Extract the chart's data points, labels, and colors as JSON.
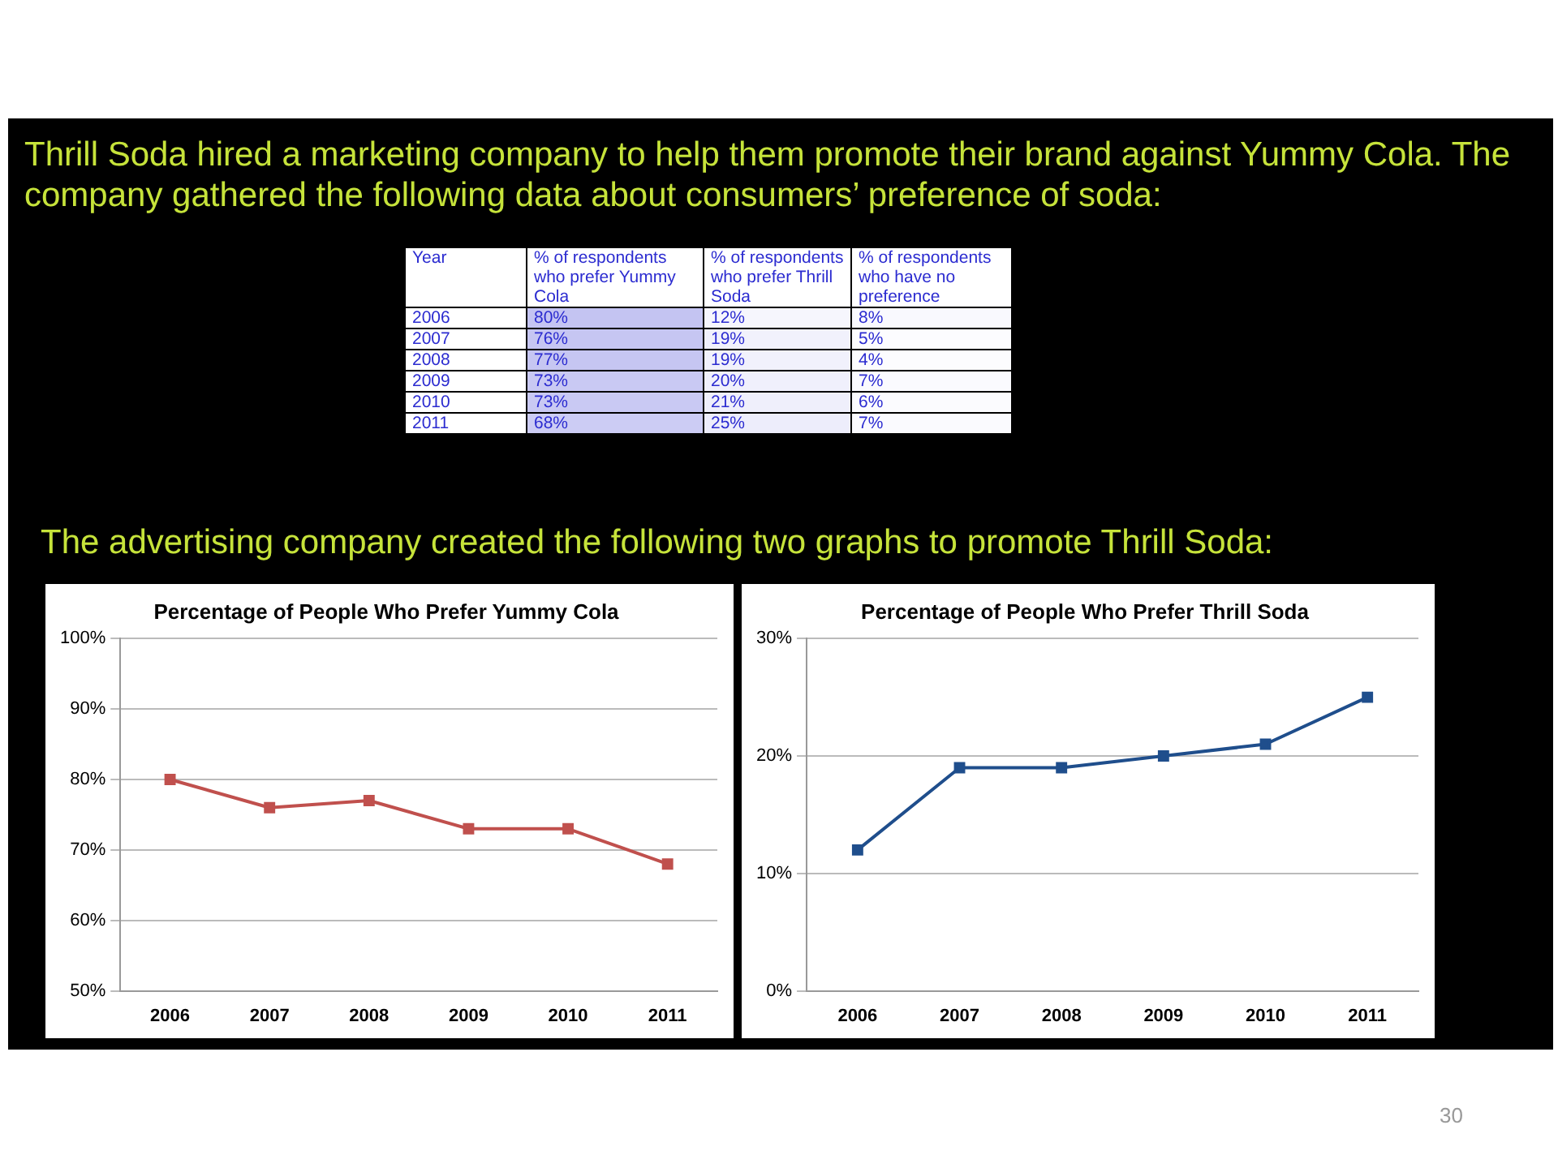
{
  "chart_data": [
    {
      "type": "heatmap",
      "title": "Thrill Soda hired a marketing company to help them promote their brand against Yummy Cola. The company gathered the following data about consumers’ preference of soda:",
      "subtitle": "The advertising company created the following two graphs to promote Thrill Soda:",
      "ylabel": "Year",
      "categories": [
        "% of respondents who prefer Yummy Cola",
        "% of respondents who prefer Thrill Soda",
        "% of respondents who have no preference"
      ],
      "y_categories": [
        "2006",
        "2007",
        "2008",
        "2009",
        "2010",
        "2011"
      ],
      "cells": [
        [
          80,
          12,
          8
        ],
        [
          76,
          19,
          5
        ],
        [
          77,
          19,
          4
        ],
        [
          73,
          20,
          7
        ],
        [
          73,
          21,
          6
        ],
        [
          68,
          25,
          7
        ]
      ],
      "cell_labels": [
        [
          "80%",
          "12%",
          "8%"
        ],
        [
          "76%",
          "19%",
          "5%"
        ],
        [
          "77%",
          "19%",
          "4%"
        ],
        [
          "73%",
          "20%",
          "7%"
        ],
        [
          "73%",
          "21%",
          "6%"
        ],
        [
          "68%",
          "25%",
          "7%"
        ]
      ]
    },
    {
      "type": "line",
      "title": "Percentage of People Who Prefer Yummy Cola",
      "categories": [
        "2006",
        "2007",
        "2008",
        "2009",
        "2010",
        "2011"
      ],
      "series": [
        {
          "color": "#c0504d",
          "values": [
            80,
            76,
            77,
            73,
            73,
            68
          ]
        }
      ],
      "ylim": [
        50,
        100
      ],
      "yticks": [
        {
          "value": 50,
          "label": "50%"
        },
        {
          "value": 60,
          "label": "60%"
        },
        {
          "value": 70,
          "label": "70%"
        },
        {
          "value": 80,
          "label": "80%"
        },
        {
          "value": 90,
          "label": "90%"
        },
        {
          "value": 100,
          "label": "100%"
        }
      ],
      "grid": "y",
      "legend": false,
      "marker": "square",
      "line_style": "solid"
    },
    {
      "type": "line",
      "title": "Percentage of People Who Prefer Thrill Soda",
      "categories": [
        "2006",
        "2007",
        "2008",
        "2009",
        "2010",
        "2011"
      ],
      "series": [
        {
          "color": "#1f4e8c",
          "values": [
            12,
            19,
            19,
            20,
            21,
            25
          ]
        }
      ],
      "ylim": [
        0,
        30
      ],
      "yticks": [
        {
          "value": 0,
          "label": "0%"
        },
        {
          "value": 10,
          "label": "10%"
        },
        {
          "value": 20,
          "label": "20%"
        },
        {
          "value": 30,
          "label": "30%"
        }
      ],
      "grid": "y",
      "legend": false,
      "marker": "square",
      "line_style": "solid",
      "annotations": [
        "30"
      ]
    }
  ]
}
